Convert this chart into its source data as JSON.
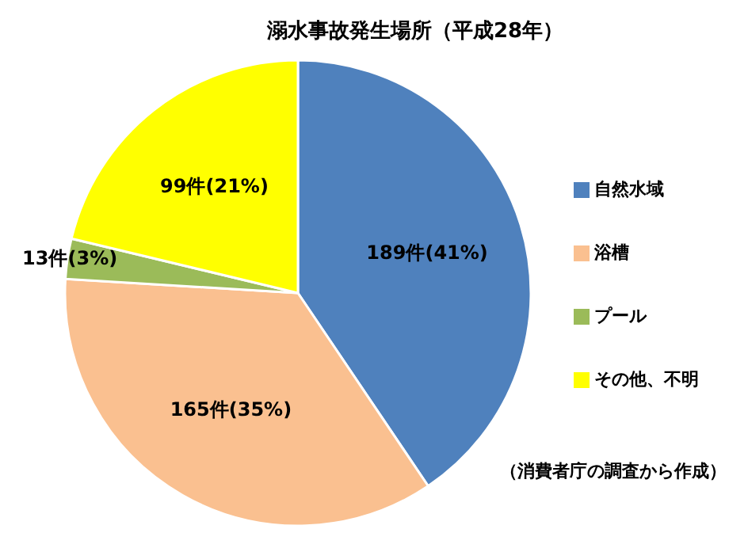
{
  "chart_data": {
    "type": "pie",
    "title": "溺水事故発生場所（平成28年）",
    "categories": [
      "自然水域",
      "浴槽",
      "プール",
      "その他、不明"
    ],
    "values": [
      189,
      165,
      13,
      99
    ],
    "colors": [
      "#4f81bd",
      "#fac090",
      "#9bbb59",
      "#ffff00"
    ],
    "value_labels": [
      "189件(41%)",
      "165件(35%)",
      "13件(3%)",
      "99件(21%)"
    ],
    "legend": "right",
    "annotations": [
      "（消費者庁の調査から作成）"
    ]
  }
}
